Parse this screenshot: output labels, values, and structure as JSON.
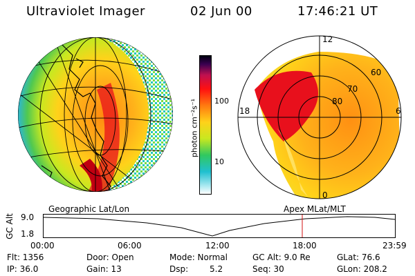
{
  "header": {
    "instrument": "Ultraviolet Imager",
    "date": "02 Jun 00",
    "time": "17:46:21 UT"
  },
  "colorbar": {
    "unit_label": "photon cm⁻²s⁻¹",
    "tick_100": "100",
    "tick_10": "10"
  },
  "polar_plot": {
    "mlt_labels": [
      "12",
      "18",
      "6",
      "0"
    ],
    "lat_labels": [
      "60",
      "70",
      "80"
    ]
  },
  "altitude_panel": {
    "left_title": "Geographic Lat/Lon",
    "right_title": "Apex MLat/MLT",
    "ylabel": "GC Alt",
    "y_ticks": [
      "9.0",
      "1.8"
    ],
    "x_ticks": [
      "00:00",
      "06:00",
      "12:00",
      "18:00",
      "23:59"
    ],
    "marker_color": "#d01010"
  },
  "info": {
    "row1": {
      "flt": "Flt: 1356",
      "door": "Door: Open",
      "mode": "Mode: Normal",
      "gcalt": "GC Alt: 9.0 Re",
      "glat": "GLat: 76.6"
    },
    "row2": {
      "ip": "IP: 36.0",
      "gain": "Gain: 13",
      "dsp": "Dsp:",
      "dsp_val": "5.2",
      "seq": "Seq: 30",
      "glon": "GLon: 208.2"
    }
  }
}
